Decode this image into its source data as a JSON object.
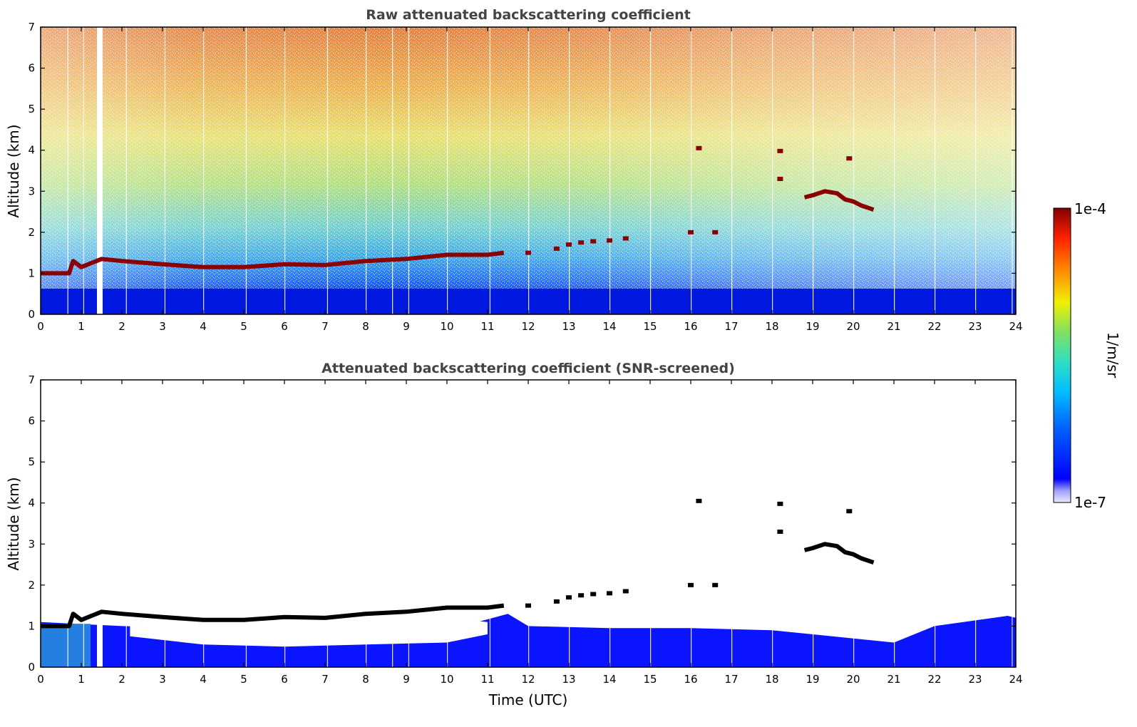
{
  "chart_data": [
    {
      "type": "heatmap",
      "title": "Raw attenuated backscattering coefficient",
      "xlabel": "",
      "ylabel": "Altitude (km)",
      "xlim": [
        0,
        24
      ],
      "ylim": [
        0,
        7
      ],
      "x_ticks": [
        "0",
        "1",
        "2",
        "3",
        "4",
        "5",
        "6",
        "7",
        "8",
        "9",
        "10",
        "11",
        "12",
        "13",
        "14",
        "15",
        "16",
        "17",
        "18",
        "19",
        "20",
        "21",
        "22",
        "23",
        "24"
      ],
      "y_ticks": [
        "0",
        "1",
        "2",
        "3",
        "4",
        "5",
        "6",
        "7"
      ],
      "grid": false,
      "layers": [
        {
          "name": "boundary layer top",
          "x": [
            0,
            0.7,
            0.8,
            1.0,
            1.5,
            2,
            3,
            4,
            5,
            6,
            7,
            8,
            9,
            10,
            11,
            11.4
          ],
          "y": [
            1.0,
            1.0,
            1.3,
            1.15,
            1.35,
            1.3,
            1.22,
            1.15,
            1.15,
            1.22,
            1.2,
            1.3,
            1.35,
            1.45,
            1.45,
            1.5
          ]
        },
        {
          "name": "cloud",
          "x": [
            18.8,
            19,
            19.3,
            19.6,
            19.8,
            20,
            20.2,
            20.5
          ],
          "y": [
            2.85,
            2.9,
            3.0,
            2.95,
            2.8,
            2.75,
            2.65,
            2.55
          ]
        }
      ],
      "colorbar": {
        "label": "1/m/sr",
        "min_label": "1e-7",
        "max_label": "1e-4",
        "scale": "log"
      }
    },
    {
      "type": "heatmap",
      "title": "Attenuated backscattering coefficient (SNR-screened)",
      "xlabel": "Time (UTC)",
      "ylabel": "Altitude (km)",
      "xlim": [
        0,
        24
      ],
      "ylim": [
        0,
        7
      ],
      "x_ticks": [
        "0",
        "1",
        "2",
        "3",
        "4",
        "5",
        "6",
        "7",
        "8",
        "9",
        "10",
        "11",
        "12",
        "13",
        "14",
        "15",
        "16",
        "17",
        "18",
        "19",
        "20",
        "21",
        "22",
        "23",
        "24"
      ],
      "y_ticks": [
        "0",
        "1",
        "2",
        "3",
        "4",
        "5",
        "6",
        "7"
      ],
      "grid": false
    }
  ],
  "colors": {
    "background": "#ffffff",
    "title": "#444444",
    "layer": "#8b0000",
    "screened_layer": "#000000",
    "low_signal": "#0a14ff"
  }
}
